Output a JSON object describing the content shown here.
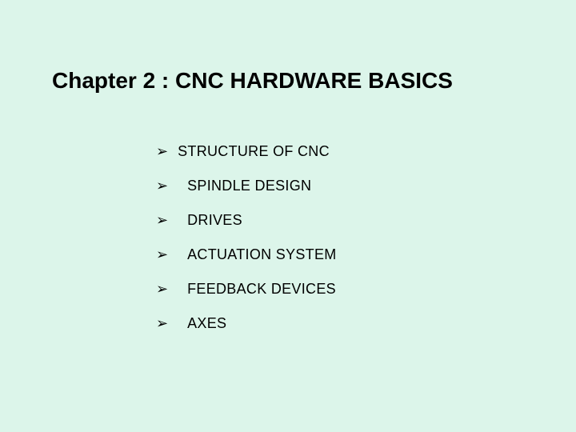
{
  "background_color": "#dcf5ea",
  "text_color": "#000000",
  "title": {
    "text": "Chapter 2 : CNC HARDWARE BASICS",
    "fontsize": 28,
    "fontweight": "bold"
  },
  "bullet_marker": "➢",
  "bullet_fontsize": 18,
  "items": [
    {
      "label": "STRUCTURE OF CNC",
      "indent": false
    },
    {
      "label": "SPINDLE DESIGN",
      "indent": true
    },
    {
      "label": "DRIVES",
      "indent": true
    },
    {
      "label": "ACTUATION SYSTEM",
      "indent": true
    },
    {
      "label": "FEEDBACK DEVICES",
      "indent": true
    },
    {
      "label": "AXES",
      "indent": true
    }
  ]
}
